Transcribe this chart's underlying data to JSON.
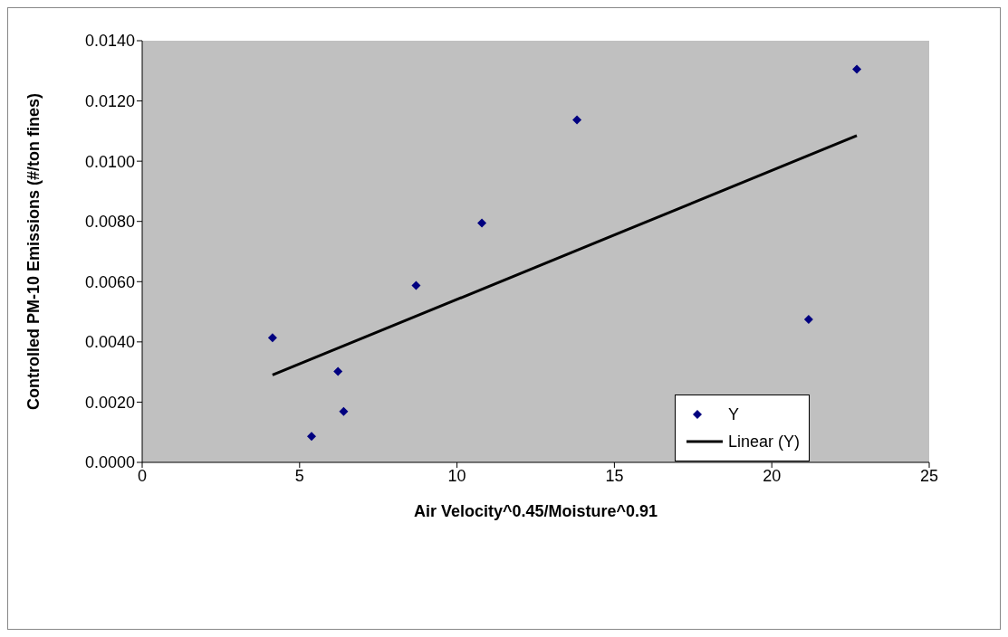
{
  "chart_data": {
    "type": "scatter",
    "xlabel": "Air Velocity^0.45/Moisture^0.91",
    "ylabel": "Controlled PM-10 Emissions (#/ton fines)",
    "xlim": [
      0,
      25
    ],
    "xticks": [
      0,
      5,
      10,
      15,
      20,
      25
    ],
    "ylim": [
      0,
      0.014
    ],
    "yticks": [
      {
        "value": 0,
        "label": "0.0000"
      },
      {
        "value": 0.002,
        "label": "0.0020"
      },
      {
        "value": 0.004,
        "label": "0.0040"
      },
      {
        "value": 0.006,
        "label": "0.0060"
      },
      {
        "value": 0.008,
        "label": "0.0080"
      },
      {
        "value": 0.01,
        "label": "0.0100"
      },
      {
        "value": 0.012,
        "label": "0.0120"
      },
      {
        "value": 0.014,
        "label": "0.0140"
      }
    ],
    "x": [
      4.14,
      5.38,
      6.22,
      6.4,
      8.7,
      10.79,
      13.81,
      21.17,
      22.7
    ],
    "series": [
      {
        "name": "Y",
        "color": "#000080",
        "marker": "diamond",
        "values": [
          0.00414,
          0.00086,
          0.00302,
          0.00169,
          0.00587,
          0.00795,
          0.01137,
          0.00475,
          0.01305
        ]
      },
      {
        "name": "Linear (Y)",
        "type": "line",
        "color": "#000000",
        "x": [
          4.14,
          22.7
        ],
        "values": [
          0.0029,
          0.01085
        ]
      }
    ],
    "grid": false,
    "legend": "bottom right"
  }
}
